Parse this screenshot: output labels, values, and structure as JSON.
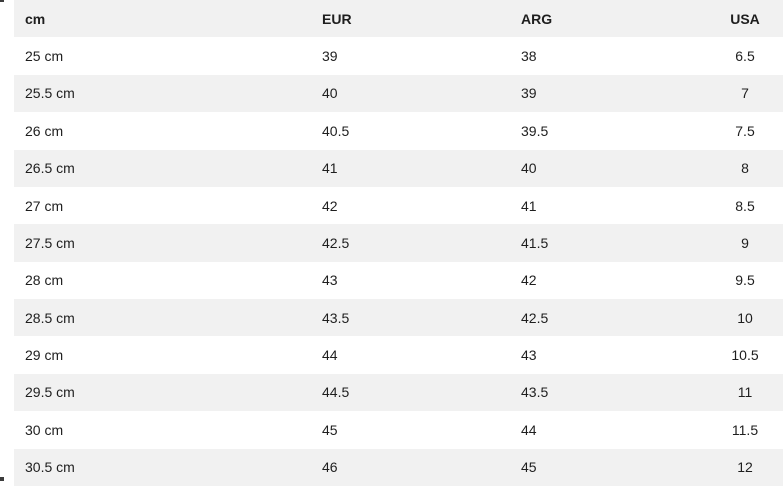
{
  "chart_data": {
    "type": "table",
    "columns": [
      "cm",
      "EUR",
      "ARG",
      "USA"
    ],
    "column_keys": [
      "cm",
      "eur",
      "arg",
      "usa"
    ],
    "column_align": [
      "left",
      "left",
      "left",
      "center"
    ],
    "rows": [
      [
        "25 cm",
        "39",
        "38",
        "6.5"
      ],
      [
        "25.5 cm",
        "40",
        "39",
        "7"
      ],
      [
        "26 cm",
        "40.5",
        "39.5",
        "7.5"
      ],
      [
        "26.5 cm",
        "41",
        "40",
        "8"
      ],
      [
        "27 cm",
        "42",
        "41",
        "8.5"
      ],
      [
        "27.5 cm",
        "42.5",
        "41.5",
        "9"
      ],
      [
        "28 cm",
        "43",
        "42",
        "9.5"
      ],
      [
        "28.5 cm",
        "43.5",
        "42.5",
        "10"
      ],
      [
        "29 cm",
        "44",
        "43",
        "10.5"
      ],
      [
        "29.5 cm",
        "44.5",
        "43.5",
        "11"
      ],
      [
        "30 cm",
        "45",
        "44",
        "11.5"
      ],
      [
        "30.5 cm",
        "46",
        "45",
        "12"
      ]
    ],
    "layout": {
      "striped": true,
      "header_striped": true,
      "first_data_row_background": "white"
    }
  },
  "colors": {
    "stripe": "#f1f1f1",
    "text": "#1e1e1e",
    "background": "#ffffff",
    "artifact": "#3c3c3c"
  }
}
